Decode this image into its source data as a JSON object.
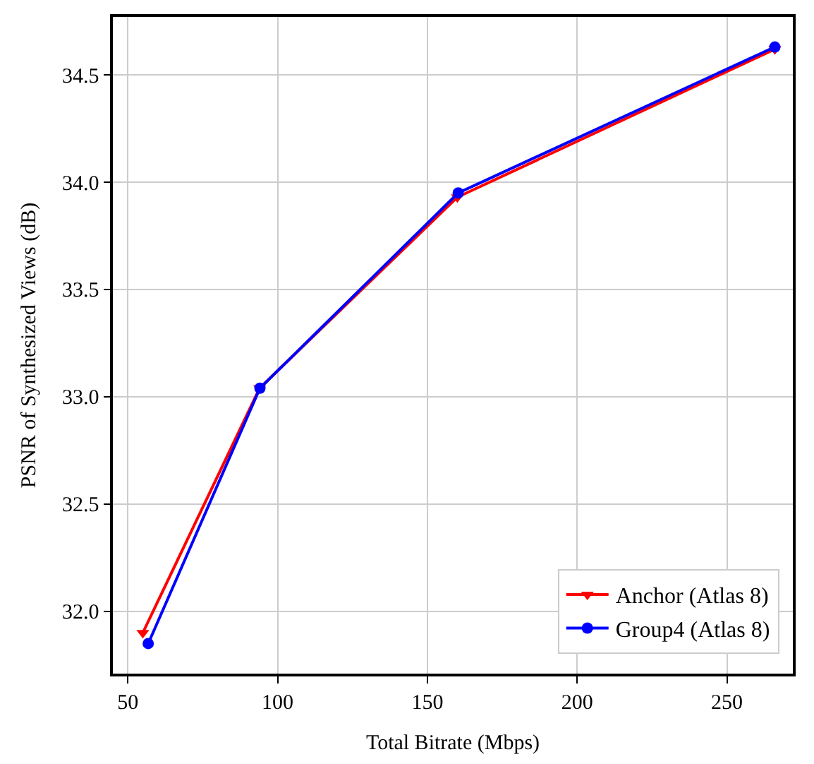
{
  "chart_data": {
    "type": "line",
    "xlabel": "Total Bitrate (Mbps)",
    "ylabel": "PSNR of Synthesized Views (dB)",
    "series": [
      {
        "name": "Anchor (Atlas 8)",
        "color": "#ff0000",
        "marker": "triangle",
        "x": [
          55,
          94,
          160,
          266
        ],
        "values": [
          31.9,
          33.04,
          33.93,
          34.62
        ]
      },
      {
        "name": "Group4 (Atlas 8)",
        "color": "#0000ff",
        "marker": "circle",
        "x": [
          56.8,
          94.1,
          160.3,
          266
        ],
        "values": [
          31.85,
          33.04,
          33.95,
          34.63
        ]
      }
    ],
    "xlim": [
      45,
      272
    ],
    "xticks": [
      50,
      100,
      150,
      200,
      250
    ],
    "ylim": [
      31.71,
      34.77
    ],
    "yticks": [
      {
        "value": 32.0,
        "label": "32.0"
      },
      {
        "value": 32.5,
        "label": "32.5"
      },
      {
        "value": 33.0,
        "label": "33.0"
      },
      {
        "value": 33.5,
        "label": "33.5"
      },
      {
        "value": 34.0,
        "label": "34.0"
      },
      {
        "value": 34.5,
        "label": "34.5"
      }
    ],
    "grid": true,
    "legend": "bottom right",
    "line_style": "solid"
  }
}
